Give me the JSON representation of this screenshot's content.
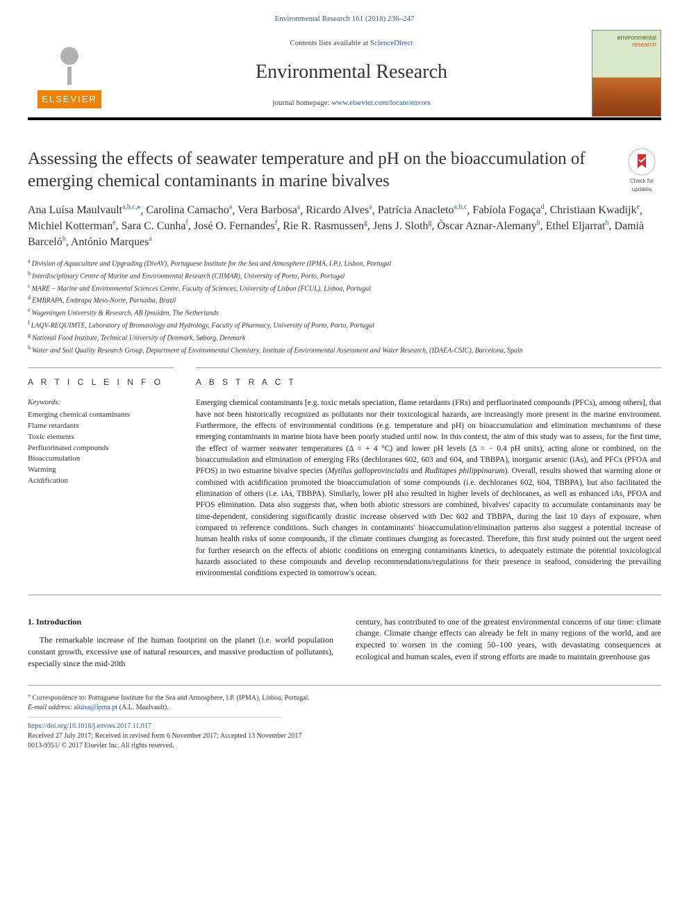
{
  "header": {
    "running_head": "Environmental Research 161 (2018) 236–247",
    "contents_prefix": "Contents lists available at ",
    "contents_link": "ScienceDirect",
    "journal_name": "Environmental Research",
    "homepage_prefix": "journal homepage: ",
    "homepage_url": "www.elsevier.com/locate/envres",
    "publisher": "ELSEVIER",
    "cover_line1": "environmental",
    "cover_line2": "research"
  },
  "badge": {
    "line1": "Check for",
    "line2": "updates"
  },
  "article": {
    "title": "Assessing the effects of seawater temperature and pH on the bioaccumulation of emerging chemical contaminants in marine bivalves"
  },
  "authors": [
    {
      "name": "Ana Luísa Maulvault",
      "aff": "a,b,c,",
      "star": true
    },
    {
      "name": "Carolina Camacho",
      "aff": "a"
    },
    {
      "name": "Vera Barbosa",
      "aff": "a"
    },
    {
      "name": "Ricardo Alves",
      "aff": "a"
    },
    {
      "name": "Patrícia Anacleto",
      "aff": "a,b,c"
    },
    {
      "name": "Fabíola Fogaça",
      "aff": "d"
    },
    {
      "name": "Christiaan Kwadijk",
      "aff": "e"
    },
    {
      "name": "Michiel Kotterman",
      "aff": "e"
    },
    {
      "name": "Sara C. Cunha",
      "aff": "f"
    },
    {
      "name": "José O. Fernandes",
      "aff": "f"
    },
    {
      "name": "Rie R. Rasmussen",
      "aff": "g"
    },
    {
      "name": "Jens J. Sloth",
      "aff": "g"
    },
    {
      "name": "Òscar Aznar-Alemany",
      "aff": "h"
    },
    {
      "name": "Ethel Eljarrat",
      "aff": "h"
    },
    {
      "name": "Damià Barceló",
      "aff": "h"
    },
    {
      "name": "António Marques",
      "aff": "a"
    }
  ],
  "affiliations": [
    {
      "key": "a",
      "text": "Division of Aquaculture and Upgrading (DivAV), Portuguese Institute for the Sea and Atmosphere (IPMA, I.P.), Lisbon, Portugal"
    },
    {
      "key": "b",
      "text": "Interdisciplinary Centre of Marine and Environmental Research (CIIMAR), University of Porto, Porto, Portugal"
    },
    {
      "key": "c",
      "text": "MARE – Marine and Environmental Sciences Centre, Faculty of Sciences, University of Lisbon (FCUL), Lisboa, Portugal"
    },
    {
      "key": "d",
      "text": "EMBRAPA, Embrapa Meio-Norte, Parnaíba, Brazil"
    },
    {
      "key": "e",
      "text": "Wageningen University & Research, AB Ijmuiden, The Netherlands"
    },
    {
      "key": "f",
      "text": "LAQV-REQUIMTE, Laboratory of Bromatology and Hydrology, Faculty of Pharmacy, University of Porto, Porto, Portugal"
    },
    {
      "key": "g",
      "text": "National Food Institute, Technical University of Denmark, Søborg, Denmark"
    },
    {
      "key": "h",
      "text": "Water and Soil Quality Research Group, Department of Environmental Chemistry, Institute of Environmental Assessment and Water Research, (IDAEA-CSIC), Barcelona, Spain"
    }
  ],
  "info": {
    "heading": "A R T I C L E  I N F O",
    "kw_label": "Keywords:",
    "keywords": [
      "Emerging chemical contaminants",
      "Flame retardants",
      "Toxic elements",
      "Perfluorinated compounds",
      "Bioaccumulation",
      "Warming",
      "Acidification"
    ]
  },
  "abstract": {
    "heading": "A B S T R A C T",
    "text_parts": [
      "Emerging chemical contaminants [e.g. toxic metals speciation, flame retardants (FRs) and perfluorinated compounds (PFCs), among others], that have not been historically recognized as pollutants nor their toxicological hazards, are increasingly more present in the marine environment. Furthermore, the effects of environmental conditions (e.g. temperature and pH) on bioaccumulation and elimination mechanisms of these emerging contaminants in marine biota have been poorly studied until now. In this context, the aim of this study was to assess, for the first time, the effect of warmer seawater temperatures (Δ = + 4 °C) and lower pH levels (Δ = − 0.4 pH units), acting alone or combined, on the bioaccumulation and elimination of emerging FRs (dechloranes 602, 603 and 604, and TBBPA), inorganic arsenic (iAs), and PFCs (PFOA and PFOS) in two estuarine bivalve species (",
      "Mytilus galloprovincialis",
      " and ",
      "Ruditapes philippinarum",
      "). Overall, results showed that warming alone or combined with acidification promoted the bioaccumulation of some compounds (i.e. dechloranes 602, 604, TBBPA), but also facilitated the elimination of others (i.e. iAs, TBBPA). Similarly, lower pH also resulted in higher levels of dechloranes, as well as enhanced iAs, PFOA and PFOS elimination. Data also suggests that, when both abiotic stressors are combined, bivalves' capacity to accumulate contaminants may be time-dependent, considering significantly drastic increase observed with Dec 602 and TBBPA, during the last 10 days of exposure, when compared to reference conditions. Such changes in contaminants' bioaccumulation/elimination patterns also suggest a potential increase of human health risks of some compounds, if the climate continues changing as forecasted. Therefore, this first study pointed out the urgent need for further research on the effects of abiotic conditions on emerging contaminants kinetics, to adequately estimate the potential toxicological hazards associated to these compounds and develop recommendations/regulations for their presence in seafood, considering the prevailing environmental conditions expected in tomorrow's ocean."
    ]
  },
  "intro": {
    "heading": "1. Introduction",
    "col1": "The remarkable increase of the human footprint on the planet (i.e. world population constant growth, excessive use of natural resources, and massive production of pollutants), especially since the mid-20th",
    "col2": "century, has contributed to one of the greatest environmental concerns of our time: climate change. Climate change effects can already be felt in many regions of the world, and are expected to worsen in the coming 50–100 years, with devastating consequences at ecological and human scales, even if strong efforts are made to maintain greenhouse gas"
  },
  "footer": {
    "corr_marker": "⁎",
    "corr_text": "Correspondence to: Portuguese Institute for the Sea and Atmosphere, I.P. (IPMA), Lisboa, Portugal.",
    "email_label": "E-mail address: ",
    "email": "aluisa@ipma.pt",
    "email_author": " (A.L. Maulvault).",
    "doi": "https://doi.org/10.1016/j.envres.2017.11.017",
    "history": "Received 27 July 2017; Received in revised form 6 November 2017; Accepted 13 November 2017",
    "copyright": "0013-9351/ © 2017 Elsevier Inc. All rights reserved."
  },
  "colors": {
    "link": "#2a5aa8",
    "publisher_bg": "#f08200",
    "rule": "#000000",
    "thin_rule": "#999999"
  }
}
